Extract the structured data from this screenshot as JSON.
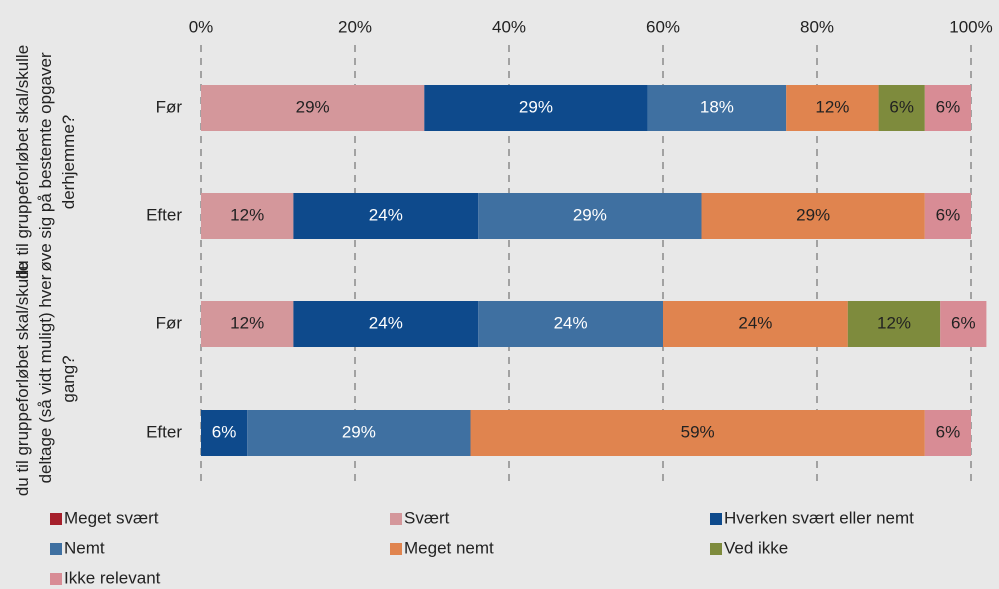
{
  "chart_data": {
    "type": "stacked-barh",
    "categories": [
      "Før",
      "Efter",
      "Før",
      "Efter"
    ],
    "group_labels": [
      "du til gruppeforløbet skal/skulle øve sig på bestemte opgaver derhjemme?",
      "du til gruppeforløbet skal/skulle deltage (så vidt muligt) hver gang?"
    ],
    "xlim": [
      0,
      100
    ],
    "xticks": [
      {
        "value": 0,
        "label": "0%"
      },
      {
        "value": 20,
        "label": "20%"
      },
      {
        "value": 40,
        "label": "40%"
      },
      {
        "value": 60,
        "label": "60%"
      },
      {
        "value": 80,
        "label": "80%"
      },
      {
        "value": 100,
        "label": "100%"
      }
    ],
    "grid": true,
    "legend": "bottom",
    "series": [
      {
        "name": "Meget svært",
        "color": "#a51f2b",
        "label_color": "#ffffff",
        "values": [
          null,
          null,
          null,
          null
        ],
        "value_labels": [
          null,
          null,
          null,
          null
        ]
      },
      {
        "name": "Svært",
        "color": "#d4979b",
        "label_color": "#222222",
        "values": [
          29,
          12,
          12,
          null
        ],
        "value_labels": [
          "29%",
          "12%",
          "12%",
          null
        ]
      },
      {
        "name": "Hverken svært eller nemt",
        "color": "#0e4a8c",
        "label_color": "#ffffff",
        "values": [
          29,
          24,
          24,
          6
        ],
        "value_labels": [
          "29%",
          "24%",
          "24%",
          "6%"
        ]
      },
      {
        "name": "Nemt",
        "color": "#3f70a1",
        "label_color": "#ffffff",
        "values": [
          18,
          29,
          24,
          29
        ],
        "value_labels": [
          "18%",
          "29%",
          "24%",
          "29%"
        ]
      },
      {
        "name": "Meget nemt",
        "color": "#e0844f",
        "label_color": "#222222",
        "values": [
          12,
          29,
          24,
          59
        ],
        "value_labels": [
          "12%",
          "29%",
          "24%",
          "59%"
        ]
      },
      {
        "name": "Ved ikke",
        "color": "#7e8b3d",
        "label_color": "#222222",
        "values": [
          6,
          null,
          12,
          null
        ],
        "value_labels": [
          "6%",
          null,
          "12%",
          null
        ]
      },
      {
        "name": "Ikke relevant",
        "color": "#d88c95",
        "label_color": "#222222",
        "values": [
          6,
          6,
          6,
          6
        ],
        "value_labels": [
          "6%",
          "6%",
          "6%",
          "6%"
        ]
      }
    ]
  }
}
